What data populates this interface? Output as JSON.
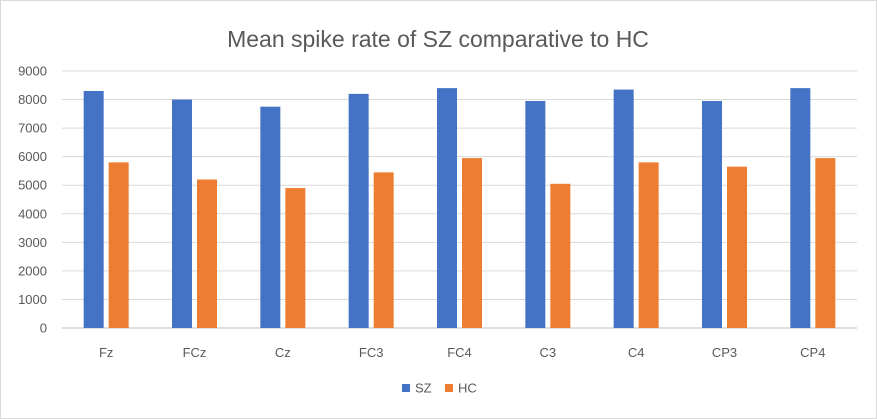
{
  "chart_data": {
    "type": "bar",
    "title": "Mean spike rate of SZ comparative to HC",
    "xlabel": "",
    "ylabel": "",
    "categories": [
      "Fz",
      "FCz",
      "Cz",
      "FC3",
      "FC4",
      "C3",
      "C4",
      "CP3",
      "CP4"
    ],
    "series": [
      {
        "name": "SZ",
        "color": "#4472c4",
        "values": [
          8300,
          8000,
          7750,
          8200,
          8400,
          7950,
          8350,
          7950,
          8400
        ]
      },
      {
        "name": "HC",
        "color": "#ed7d31",
        "values": [
          5800,
          5200,
          4900,
          5450,
          5950,
          5050,
          5800,
          5650,
          5950
        ]
      }
    ],
    "ylim": [
      0,
      9000
    ],
    "yticks": [
      "0",
      "1000",
      "2000",
      "3000",
      "4000",
      "5000",
      "6000",
      "7000",
      "8000",
      "9000"
    ],
    "grid": true,
    "legend_position": "bottom"
  }
}
